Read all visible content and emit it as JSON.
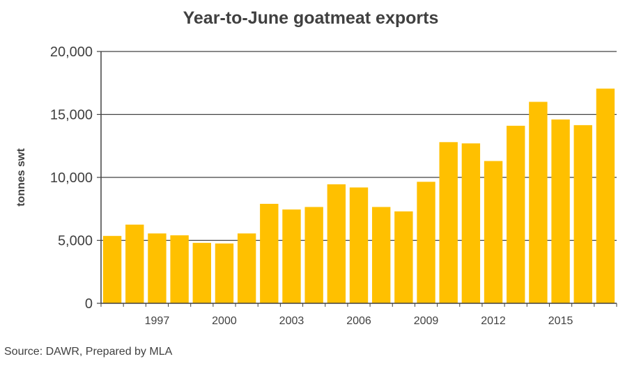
{
  "chart_data": {
    "type": "bar",
    "title": "Year-to-June goatmeat exports",
    "ylabel": "tonnes swt",
    "xlabel": "",
    "source": "Source: DAWR, Prepared by MLA",
    "ylim": [
      0,
      20000
    ],
    "yticks": [
      0,
      5000,
      10000,
      15000,
      20000
    ],
    "ytick_labels": [
      "0",
      "5,000",
      "10,000",
      "15,000",
      "20,000"
    ],
    "xtick_labels": [
      "1997",
      "2000",
      "2003",
      "2006",
      "2009",
      "2012",
      "2015"
    ],
    "categories": [
      "1995",
      "1996",
      "1997",
      "1998",
      "1999",
      "2000",
      "2001",
      "2002",
      "2003",
      "2004",
      "2005",
      "2006",
      "2007",
      "2008",
      "2009",
      "2010",
      "2011",
      "2012",
      "2013",
      "2014",
      "2015",
      "2016",
      "2017"
    ],
    "values": [
      5350,
      6250,
      5550,
      5400,
      4800,
      4750,
      5550,
      7900,
      7450,
      7650,
      9450,
      9200,
      7650,
      7300,
      9650,
      12800,
      12700,
      11300,
      14100,
      16000,
      14600,
      14150,
      17050
    ],
    "bar_color": "#FFC000",
    "grid": true,
    "legend": "none"
  }
}
